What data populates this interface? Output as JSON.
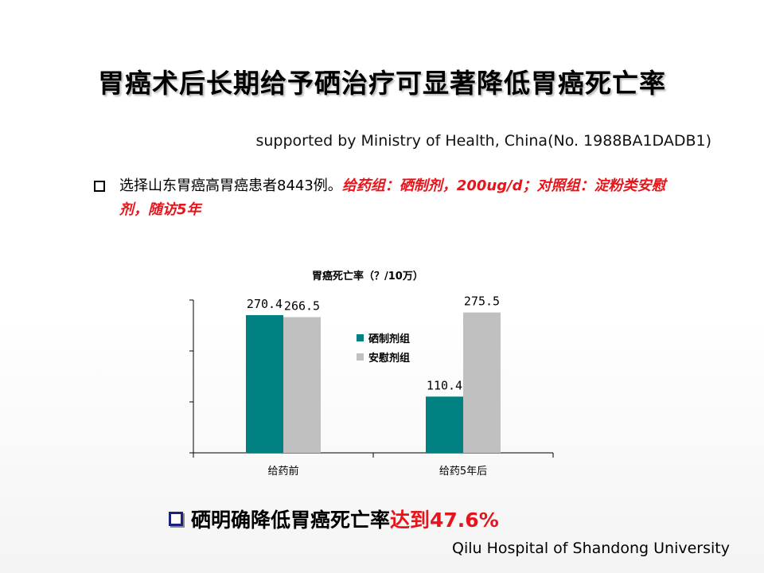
{
  "slide": {
    "title": "胃癌术后长期给予硒治疗可显著降低胃癌死亡率",
    "support_note": "supported by Ministry of Health, China(No. 1988BA1DADB1)",
    "bullet1_plain": "选择山东胃癌高胃癌患者8443例。",
    "bullet1_red": "给药组：硒制剂，200ug/d；对照组：淀粉类安慰剂，随访5年",
    "bottom_plain": "硒明确降低胃癌死亡率",
    "bottom_red": "达到47.6%",
    "footer": "Qilu Hospital of Shandong University"
  },
  "colors": {
    "teal": "#008080",
    "gray": "#c0c0c0",
    "red": "#e8141b"
  },
  "chart_data": {
    "type": "bar",
    "title": "胃癌死亡率（？/10万）",
    "categories": [
      "给药前",
      "给药5年后"
    ],
    "series": [
      {
        "name": "硒制剂组",
        "values": [
          270.4,
          110.4
        ],
        "color": "#008080"
      },
      {
        "name": "安慰剂组",
        "values": [
          266.5,
          275.5
        ],
        "color": "#c0c0c0"
      }
    ],
    "data_labels": [
      [
        "270.4",
        "110.4"
      ],
      [
        "266.5",
        "275.5"
      ]
    ],
    "ylim": [
      0,
      300
    ],
    "legend_position": "center",
    "grid": false
  }
}
